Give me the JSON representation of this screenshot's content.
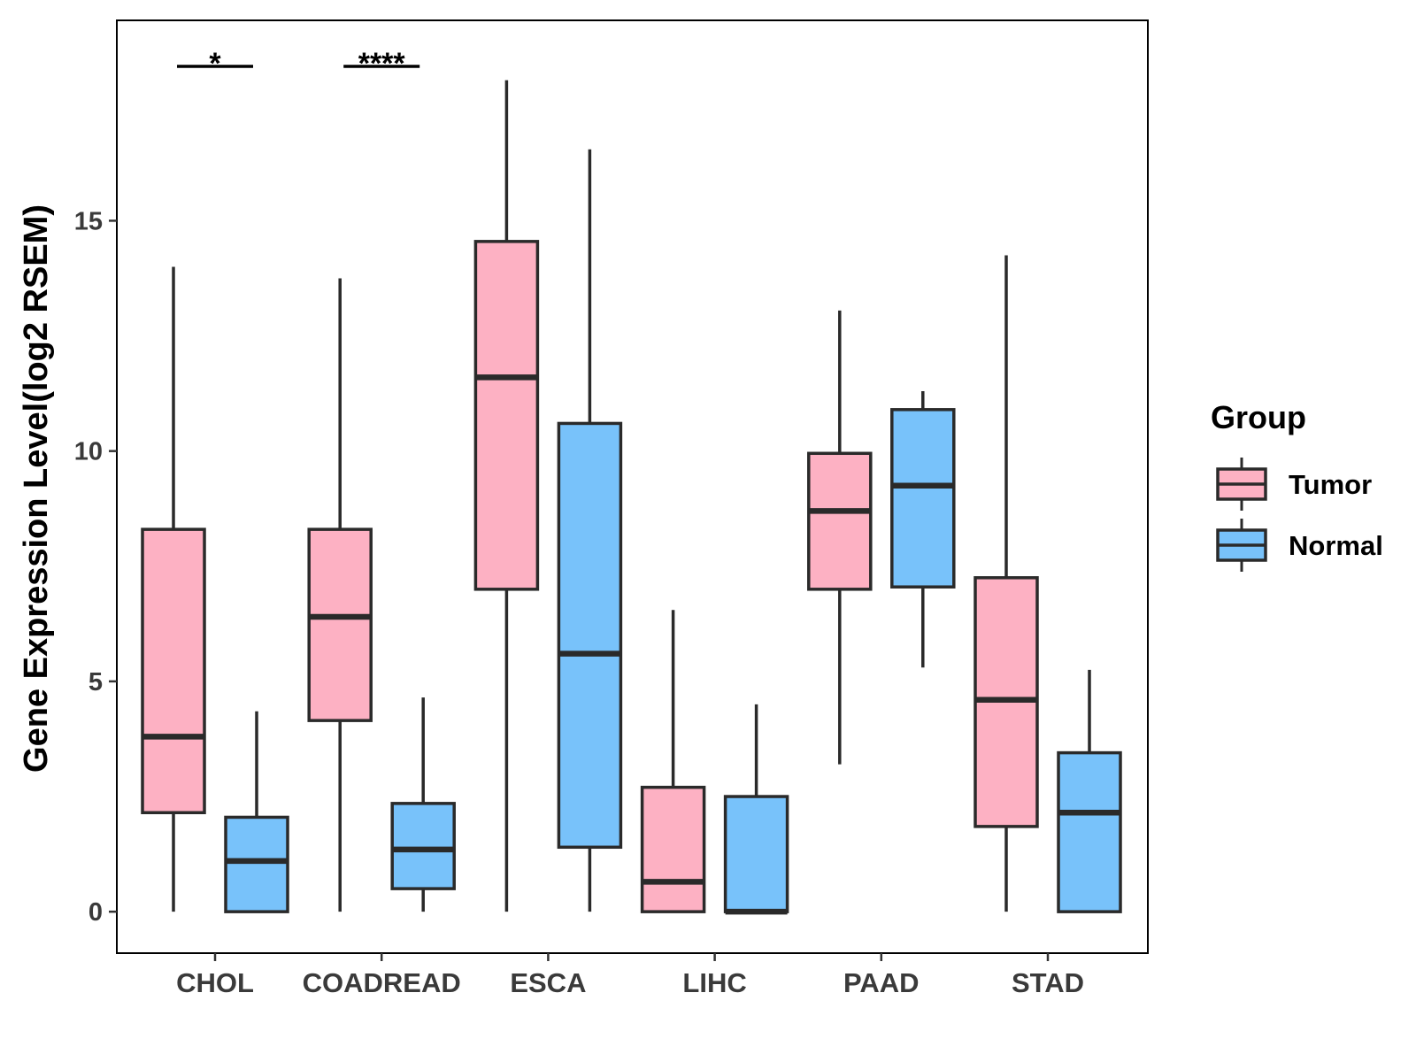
{
  "chart_data": {
    "type": "boxplot",
    "ylabel": "Gene Expression Level(log2 RSEM)",
    "xlabel": "",
    "ylim": [
      -0.9,
      19.35
    ],
    "yticks": [
      0,
      5,
      10,
      15
    ],
    "categories": [
      "CHOL",
      "COADREAD",
      "ESCA",
      "LIHC",
      "PAAD",
      "STAD"
    ],
    "legend": {
      "title": "Group",
      "position": "right",
      "entries": [
        {
          "name": "Tumor",
          "color": "#FDB1C3"
        },
        {
          "name": "Normal",
          "color": "#78C2FA"
        }
      ]
    },
    "series": [
      {
        "name": "Tumor",
        "color": "#FDB1C3",
        "boxes": [
          {
            "min": 0,
            "q1": 2.15,
            "median": 3.8,
            "q3": 8.3,
            "max": 14.0
          },
          {
            "min": 0,
            "q1": 4.15,
            "median": 6.4,
            "q3": 8.3,
            "max": 13.75
          },
          {
            "min": 0,
            "q1": 7.0,
            "median": 11.6,
            "q3": 14.55,
            "max": 18.05
          },
          {
            "min": 0,
            "q1": 0,
            "median": 0.65,
            "q3": 2.7,
            "max": 6.55
          },
          {
            "min": 3.2,
            "q1": 7.0,
            "median": 8.7,
            "q3": 9.95,
            "max": 13.05
          },
          {
            "min": 0,
            "q1": 1.85,
            "median": 4.6,
            "q3": 7.25,
            "max": 14.25
          }
        ]
      },
      {
        "name": "Normal",
        "color": "#78C2FA",
        "boxes": [
          {
            "min": 0,
            "q1": 0,
            "median": 1.1,
            "q3": 2.05,
            "max": 4.35
          },
          {
            "min": 0,
            "q1": 0.5,
            "median": 1.35,
            "q3": 2.35,
            "max": 4.65
          },
          {
            "min": 0,
            "q1": 1.4,
            "median": 5.6,
            "q3": 10.6,
            "max": 16.55
          },
          {
            "min": 0,
            "q1": 0,
            "median": 0.0,
            "q3": 2.5,
            "max": 4.5
          },
          {
            "min": 5.3,
            "q1": 7.05,
            "median": 9.25,
            "q3": 10.9,
            "max": 11.3
          },
          {
            "min": 0,
            "q1": 0,
            "median": 2.15,
            "q3": 3.45,
            "max": 5.25
          }
        ]
      }
    ],
    "annotations": [
      {
        "category": "CHOL",
        "label": "*",
        "y": 18.35
      },
      {
        "category": "COADREAD",
        "label": "****",
        "y": 18.35
      }
    ]
  }
}
